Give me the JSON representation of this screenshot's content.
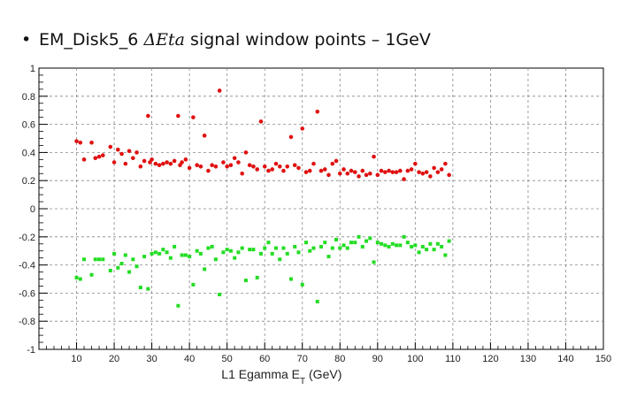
{
  "slide": {
    "bullet": "•",
    "title_prefix": "EM_Disk5_6 ",
    "title_symbol": "ΔEta",
    "title_suffix": " signal window points – 1GeV"
  },
  "chart_data": {
    "type": "scatter",
    "title": "",
    "xlabel": "L1 Egamma E",
    "xlabel_sub": "T",
    "xlabel_unit": " (GeV)",
    "ylabel": "",
    "xlim": [
      0,
      150
    ],
    "ylim": [
      -1,
      1
    ],
    "x_ticks": [
      10,
      20,
      30,
      40,
      50,
      60,
      70,
      80,
      90,
      100,
      110,
      120,
      130,
      140,
      150
    ],
    "y_ticks": [
      -1,
      -0.8,
      -0.6,
      -0.4,
      -0.2,
      0,
      0.2,
      0.4,
      0.6,
      0.8,
      1
    ],
    "y_tick_labels": [
      "-1",
      "-0.8",
      "-0.6",
      "-0.4",
      "-0.2",
      "0",
      "0.2",
      "0.4",
      "0.6",
      "0.8",
      "1"
    ],
    "grid": true,
    "series": [
      {
        "color": "#e01010",
        "marker": "circle",
        "points": [
          [
            10,
            0.48
          ],
          [
            11,
            0.47
          ],
          [
            12,
            0.35
          ],
          [
            14,
            0.47
          ],
          [
            15,
            0.36
          ],
          [
            16,
            0.37
          ],
          [
            17,
            0.38
          ],
          [
            19,
            0.44
          ],
          [
            20,
            0.33
          ],
          [
            21,
            0.42
          ],
          [
            22,
            0.39
          ],
          [
            23,
            0.32
          ],
          [
            24,
            0.41
          ],
          [
            25,
            0.36
          ],
          [
            26,
            0.4
          ],
          [
            27,
            0.3
          ],
          [
            28,
            0.34
          ],
          [
            29,
            0.66
          ],
          [
            29.5,
            0.33
          ],
          [
            30,
            0.35
          ],
          [
            31,
            0.32
          ],
          [
            32,
            0.31
          ],
          [
            33,
            0.32
          ],
          [
            34,
            0.33
          ],
          [
            35,
            0.32
          ],
          [
            36,
            0.34
          ],
          [
            37,
            0.66
          ],
          [
            37.5,
            0.31
          ],
          [
            38,
            0.33
          ],
          [
            39,
            0.35
          ],
          [
            40,
            0.29
          ],
          [
            41,
            0.65
          ],
          [
            42,
            0.31
          ],
          [
            43,
            0.3
          ],
          [
            44,
            0.52
          ],
          [
            45,
            0.27
          ],
          [
            46,
            0.31
          ],
          [
            47,
            0.3
          ],
          [
            48,
            0.84
          ],
          [
            49,
            0.33
          ],
          [
            50,
            0.3
          ],
          [
            51,
            0.31
          ],
          [
            52,
            0.36
          ],
          [
            53,
            0.33
          ],
          [
            54,
            0.25
          ],
          [
            55,
            0.4
          ],
          [
            56,
            0.31
          ],
          [
            57,
            0.3
          ],
          [
            58,
            0.28
          ],
          [
            59,
            0.62
          ],
          [
            60,
            0.3
          ],
          [
            61,
            0.27
          ],
          [
            62,
            0.28
          ],
          [
            63,
            0.32
          ],
          [
            64,
            0.3
          ],
          [
            65,
            0.27
          ],
          [
            66,
            0.3
          ],
          [
            67,
            0.51
          ],
          [
            68,
            0.31
          ],
          [
            69,
            0.29
          ],
          [
            70,
            0.57
          ],
          [
            71,
            0.26
          ],
          [
            72,
            0.27
          ],
          [
            73,
            0.32
          ],
          [
            74,
            0.69
          ],
          [
            75,
            0.27
          ],
          [
            76,
            0.28
          ],
          [
            77,
            0.24
          ],
          [
            78,
            0.32
          ],
          [
            79,
            0.34
          ],
          [
            80,
            0.25
          ],
          [
            81,
            0.28
          ],
          [
            82,
            0.25
          ],
          [
            83,
            0.27
          ],
          [
            84,
            0.26
          ],
          [
            85,
            0.23
          ],
          [
            86,
            0.27
          ],
          [
            87,
            0.24
          ],
          [
            88,
            0.25
          ],
          [
            89,
            0.37
          ],
          [
            90,
            0.24
          ],
          [
            91,
            0.27
          ],
          [
            92,
            0.26
          ],
          [
            93,
            0.27
          ],
          [
            94,
            0.26
          ],
          [
            95,
            0.26
          ],
          [
            96,
            0.27
          ],
          [
            97,
            0.21
          ],
          [
            98,
            0.27
          ],
          [
            99,
            0.28
          ],
          [
            100,
            0.32
          ],
          [
            101,
            0.26
          ],
          [
            102,
            0.25
          ],
          [
            103,
            0.26
          ],
          [
            104,
            0.23
          ],
          [
            105,
            0.29
          ],
          [
            106,
            0.26
          ],
          [
            107,
            0.28
          ],
          [
            108,
            0.32
          ],
          [
            109,
            0.24
          ]
        ]
      },
      {
        "color": "#22dd22",
        "marker": "square",
        "points": [
          [
            10,
            -0.49
          ],
          [
            11,
            -0.5
          ],
          [
            12,
            -0.36
          ],
          [
            14,
            -0.47
          ],
          [
            15,
            -0.36
          ],
          [
            16,
            -0.36
          ],
          [
            17,
            -0.36
          ],
          [
            19,
            -0.44
          ],
          [
            20,
            -0.32
          ],
          [
            21,
            -0.42
          ],
          [
            22,
            -0.39
          ],
          [
            23,
            -0.33
          ],
          [
            24,
            -0.45
          ],
          [
            25,
            -0.36
          ],
          [
            26,
            -0.41
          ],
          [
            27,
            -0.56
          ],
          [
            28,
            -0.34
          ],
          [
            29,
            -0.57
          ],
          [
            30,
            -0.32
          ],
          [
            31,
            -0.31
          ],
          [
            32,
            -0.32
          ],
          [
            33,
            -0.29
          ],
          [
            34,
            -0.31
          ],
          [
            35,
            -0.35
          ],
          [
            36,
            -0.27
          ],
          [
            37,
            -0.69
          ],
          [
            38,
            -0.33
          ],
          [
            39,
            -0.33
          ],
          [
            40,
            -0.34
          ],
          [
            41,
            -0.54
          ],
          [
            42,
            -0.3
          ],
          [
            43,
            -0.32
          ],
          [
            44,
            -0.43
          ],
          [
            45,
            -0.28
          ],
          [
            46,
            -0.27
          ],
          [
            47,
            -0.36
          ],
          [
            48,
            -0.61
          ],
          [
            49,
            -0.31
          ],
          [
            50,
            -0.29
          ],
          [
            51,
            -0.3
          ],
          [
            52,
            -0.35
          ],
          [
            53,
            -0.31
          ],
          [
            54,
            -0.28
          ],
          [
            55,
            -0.51
          ],
          [
            56,
            -0.29
          ],
          [
            57,
            -0.29
          ],
          [
            58,
            -0.49
          ],
          [
            59,
            -0.32
          ],
          [
            60,
            -0.28
          ],
          [
            61,
            -0.24
          ],
          [
            62,
            -0.32
          ],
          [
            63,
            -0.28
          ],
          [
            64,
            -0.36
          ],
          [
            65,
            -0.28
          ],
          [
            66,
            -0.32
          ],
          [
            67,
            -0.5
          ],
          [
            68,
            -0.27
          ],
          [
            69,
            -0.31
          ],
          [
            70,
            -0.54
          ],
          [
            71,
            -0.24
          ],
          [
            72,
            -0.3
          ],
          [
            73,
            -0.28
          ],
          [
            74,
            -0.66
          ],
          [
            75,
            -0.27
          ],
          [
            76,
            -0.24
          ],
          [
            77,
            -0.34
          ],
          [
            78,
            -0.28
          ],
          [
            79,
            -0.22
          ],
          [
            80,
            -0.28
          ],
          [
            81,
            -0.26
          ],
          [
            82,
            -0.28
          ],
          [
            83,
            -0.24
          ],
          [
            84,
            -0.24
          ],
          [
            85,
            -0.2
          ],
          [
            86,
            -0.27
          ],
          [
            87,
            -0.23
          ],
          [
            88,
            -0.21
          ],
          [
            89,
            -0.38
          ],
          [
            90,
            -0.24
          ],
          [
            91,
            -0.25
          ],
          [
            92,
            -0.26
          ],
          [
            93,
            -0.27
          ],
          [
            94,
            -0.25
          ],
          [
            95,
            -0.26
          ],
          [
            96,
            -0.26
          ],
          [
            97,
            -0.2
          ],
          [
            98,
            -0.24
          ],
          [
            99,
            -0.27
          ],
          [
            100,
            -0.26
          ],
          [
            101,
            -0.31
          ],
          [
            102,
            -0.27
          ],
          [
            103,
            -0.29
          ],
          [
            104,
            -0.25
          ],
          [
            105,
            -0.29
          ],
          [
            106,
            -0.25
          ],
          [
            107,
            -0.27
          ],
          [
            108,
            -0.33
          ],
          [
            109,
            -0.23
          ]
        ]
      }
    ]
  }
}
